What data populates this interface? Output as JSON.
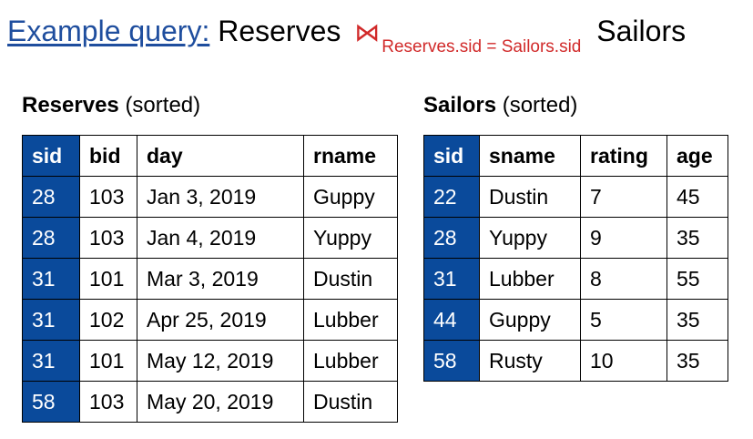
{
  "header": {
    "link_text": "Example query:",
    "left_relation": "Reserves",
    "join_symbol": "⋈",
    "join_condition": "Reserves.sid = Sailors.sid",
    "right_relation": "Sailors"
  },
  "reserves": {
    "caption_name": "Reserves",
    "caption_suffix": "(sorted)",
    "columns": [
      "sid",
      "bid",
      "day",
      "rname"
    ],
    "rows": [
      [
        "28",
        "103",
        "Jan 3, 2019",
        "Guppy"
      ],
      [
        "28",
        "103",
        "Jan 4, 2019",
        "Yuppy"
      ],
      [
        "31",
        "101",
        "Mar 3, 2019",
        "Dustin"
      ],
      [
        "31",
        "102",
        "Apr 25, 2019",
        "Lubber"
      ],
      [
        "31",
        "101",
        "May 12, 2019",
        "Lubber"
      ],
      [
        "58",
        "103",
        "May 20, 2019",
        "Dustin"
      ]
    ]
  },
  "sailors": {
    "caption_name": "Sailors",
    "caption_suffix": "(sorted)",
    "columns": [
      "sid",
      "sname",
      "rating",
      "age"
    ],
    "rows": [
      [
        "22",
        "Dustin",
        "7",
        "45"
      ],
      [
        "28",
        "Yuppy",
        "9",
        "35"
      ],
      [
        "31",
        "Lubber",
        "8",
        "55"
      ],
      [
        "44",
        "Guppy",
        "5",
        "35"
      ],
      [
        "58",
        "Rusty",
        "10",
        "35"
      ]
    ]
  },
  "colors": {
    "key_column_bg": "#0a4a9b",
    "key_column_text": "#ffffff",
    "link_color": "#1f4e9e",
    "join_color": "#d12a2a"
  }
}
